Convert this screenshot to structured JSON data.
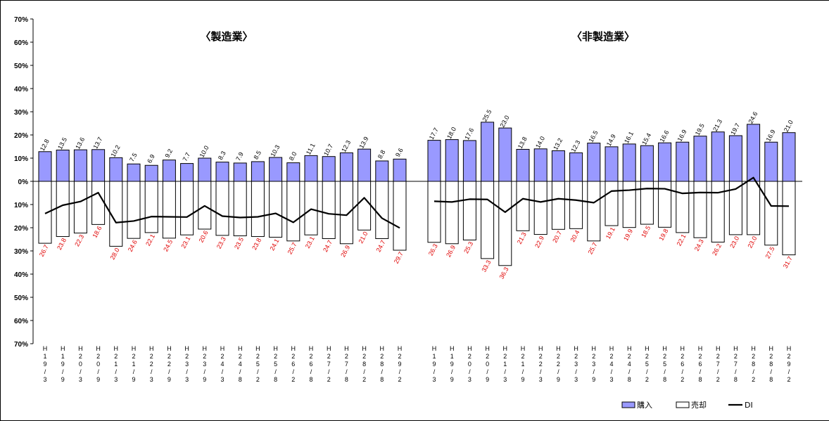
{
  "chart_data": {
    "type": "bar",
    "ylim": [
      -70,
      70
    ],
    "yticks": [
      "70%",
      "60%",
      "50%",
      "40%",
      "30%",
      "20%",
      "10%",
      "0%",
      "10%",
      "20%",
      "30%",
      "40%",
      "50%",
      "60%",
      "70%"
    ],
    "legend": {
      "placement": "bottom-right",
      "purchase": "購入",
      "sale": "売却",
      "di": "DI"
    },
    "colors": {
      "purchase": "#9999ff",
      "sale": "#ffffff",
      "di": "#000000",
      "sale_label": "#e00000"
    },
    "panels": [
      {
        "title": "〈製造業〉",
        "categories": [
          "H19/3",
          "H19/9",
          "H20/3",
          "H20/9",
          "H21/3",
          "H21/9",
          "H22/3",
          "H22/9",
          "H23/3",
          "H23/9",
          "H24/3",
          "H24/8",
          "H25/2",
          "H25/8",
          "H26/2",
          "H26/8",
          "H27/2",
          "H27/8",
          "H28/2",
          "H28/8",
          "H29/2"
        ],
        "series": [
          {
            "name": "購入",
            "values": [
              12.8,
              13.5,
              13.6,
              13.7,
              10.2,
              7.5,
              6.9,
              9.2,
              7.7,
              10.0,
              8.3,
              7.9,
              8.5,
              10.3,
              8.0,
              11.1,
              10.7,
              12.3,
              13.9,
              8.8,
              9.6
            ]
          },
          {
            "name": "売却",
            "values": [
              26.7,
              23.8,
              22.3,
              18.6,
              28.0,
              24.6,
              22.1,
              24.5,
              23.1,
              20.6,
              23.3,
              23.5,
              23.8,
              24.1,
              25.7,
              23.1,
              24.7,
              26.9,
              21.0,
              24.7,
              29.7
            ]
          },
          {
            "name": "DI",
            "values": [
              -13.9,
              -10.3,
              -8.7,
              -4.9,
              -17.8,
              -17.1,
              -15.2,
              -15.3,
              -15.4,
              -10.6,
              -15.0,
              -15.6,
              -15.3,
              -13.8,
              -17.7,
              -12.0,
              -14.0,
              -14.6,
              -7.1,
              -15.9,
              -20.1
            ]
          }
        ]
      },
      {
        "title": "〈非製造業〉",
        "categories": [
          "H19/3",
          "H19/9",
          "H20/3",
          "H20/9",
          "H21/3",
          "H21/9",
          "H22/3",
          "H22/9",
          "H23/3",
          "H23/9",
          "H24/3",
          "H24/8",
          "H25/2",
          "H25/8",
          "H26/2",
          "H26/8",
          "H27/2",
          "H27/8",
          "H28/2",
          "H28/8",
          "H29/2"
        ],
        "series": [
          {
            "name": "購入",
            "values": [
              17.7,
              18.0,
              17.6,
              25.5,
              23.0,
              13.8,
              14.0,
              13.2,
              12.3,
              16.5,
              14.9,
              16.1,
              15.4,
              16.6,
              16.9,
              19.5,
              21.3,
              19.7,
              24.6,
              16.9,
              21.0
            ]
          },
          {
            "name": "売却",
            "values": [
              26.3,
              26.9,
              25.3,
              33.3,
              36.3,
              21.3,
              22.9,
              20.7,
              20.4,
              25.7,
              19.1,
              19.9,
              18.5,
              19.8,
              22.1,
              24.3,
              26.2,
              23.0,
              23.0,
              27.5,
              31.7
            ]
          },
          {
            "name": "DI",
            "values": [
              -8.6,
              -8.9,
              -7.7,
              -7.8,
              -13.3,
              -7.5,
              -8.9,
              -7.5,
              -8.1,
              -9.2,
              -4.2,
              -3.8,
              -3.1,
              -3.2,
              -5.2,
              -4.8,
              -4.9,
              -3.3,
              1.6,
              -10.6,
              -10.7
            ]
          }
        ]
      }
    ]
  }
}
